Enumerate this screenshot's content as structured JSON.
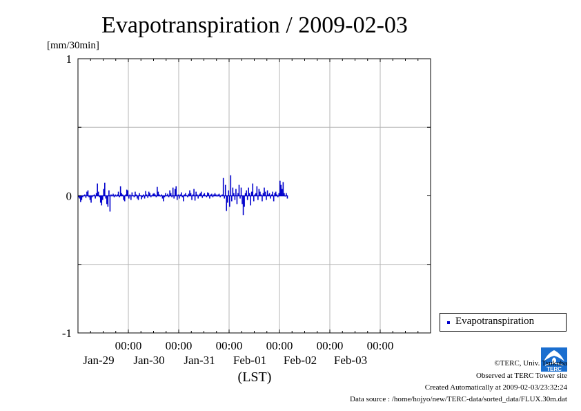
{
  "chart_data": {
    "type": "bar",
    "title": "Evapotranspiration / 2009-02-03",
    "ylabel": "[mm/30min]",
    "xlabel": "(LST)",
    "ylim": [
      -1,
      1
    ],
    "yticks": [
      "1",
      "0",
      "-1"
    ],
    "grid": true,
    "x_start": "2009-01-28 00:00",
    "x_end": "2009-02-04 00:00",
    "x_major_ticks": [
      {
        "time": "00:00",
        "date": "Jan-29"
      },
      {
        "time": "00:00",
        "date": "Jan-30"
      },
      {
        "time": "00:00",
        "date": "Jan-31"
      },
      {
        "time": "00:00",
        "date": "Feb-01"
      },
      {
        "time": "00:00",
        "date": "Feb-02"
      },
      {
        "time": "00:00",
        "date": "Feb-03"
      }
    ],
    "interval": "30min",
    "series": [
      {
        "name": "Evapotranspiration",
        "color": "#0000cc",
        "start": "2009-01-28 00:00",
        "values": [
          -0.01,
          -0.02,
          -0.045,
          -0.03,
          -0.01,
          0.005,
          0.01,
          -0.015,
          0.03,
          0.04,
          -0.01,
          -0.03,
          -0.05,
          -0.01,
          0.005,
          0.01,
          -0.02,
          0.02,
          0.09,
          0.03,
          -0.01,
          -0.05,
          -0.07,
          -0.03,
          0.05,
          0.095,
          -0.02,
          -0.06,
          -0.08,
          0.04,
          -0.115,
          0.01,
          0.005,
          0.015,
          -0.01,
          0.01,
          0.0,
          0.01,
          0.03,
          -0.01,
          0.07,
          0.02,
          0.01,
          -0.03,
          -0.04,
          0.01,
          0.045,
          0.04,
          -0.02,
          0.01,
          -0.03,
          0.025,
          0.005,
          -0.01,
          0.03,
          0.01,
          -0.02,
          -0.03,
          0.02,
          0.005,
          -0.025,
          -0.01,
          0.01,
          -0.02,
          0.035,
          0.01,
          -0.015,
          0.03,
          0.02,
          -0.01,
          0.005,
          0.015,
          0.02,
          0.01,
          -0.01,
          0.065,
          0.03,
          0.01,
          -0.005,
          0.01,
          -0.02,
          -0.04,
          -0.01,
          0.02,
          0.005,
          0.015,
          -0.01,
          0.04,
          0.02,
          -0.01,
          0.06,
          -0.02,
          0.05,
          0.07,
          -0.03,
          0.01,
          -0.02,
          0.01,
          0.025,
          -0.01,
          -0.04,
          0.01,
          0.02,
          0.005,
          -0.01,
          0.015,
          0.04,
          0.02,
          -0.03,
          0.01,
          0.05,
          -0.035,
          0.03,
          0.01,
          -0.02,
          0.01,
          0.02,
          0.03,
          -0.015,
          0.01,
          0.02,
          0.005,
          -0.01,
          0.025,
          0.02,
          -0.02,
          0.01,
          0.015,
          -0.01,
          0.01,
          0.02,
          0.01,
          -0.005,
          0.01,
          0.015,
          -0.01,
          0.005,
          0.01,
          0.13,
          -0.02,
          0.08,
          -0.11,
          -0.05,
          0.04,
          -0.08,
          0.15,
          -0.04,
          0.06,
          0.02,
          -0.03,
          0.05,
          -0.06,
          0.02,
          0.08,
          -0.02,
          0.06,
          -0.06,
          -0.14,
          -0.08,
          0.02,
          0.04,
          -0.03,
          0.06,
          0.02,
          -0.07,
          0.03,
          0.09,
          -0.04,
          0.01,
          0.02,
          0.07,
          -0.03,
          0.05,
          0.03,
          0.01,
          -0.04,
          0.02,
          0.06,
          0.03,
          -0.03,
          0.04,
          0.01,
          0.02,
          -0.02,
          0.01,
          0.03,
          -0.04,
          0.02,
          0.03,
          0.01,
          -0.01,
          0.02,
          0.11,
          0.08,
          0.05,
          0.1,
          0.02,
          0.0,
          0.02,
          -0.02
        ]
      }
    ]
  },
  "legend": {
    "label": "Evapotranspiration"
  },
  "footer": {
    "copyright": "©TERC, Univ. Tsukuba",
    "observed": "Observed at TERC Tower site",
    "created": "Created Automatically at 2009-02-03/23:32:24",
    "source": "Data source : /home/hojyo/new/TERC-data/sorted_data/FLUX.30m.dat"
  },
  "logo": {
    "text": "TERC",
    "color": "#1a6ecf"
  }
}
